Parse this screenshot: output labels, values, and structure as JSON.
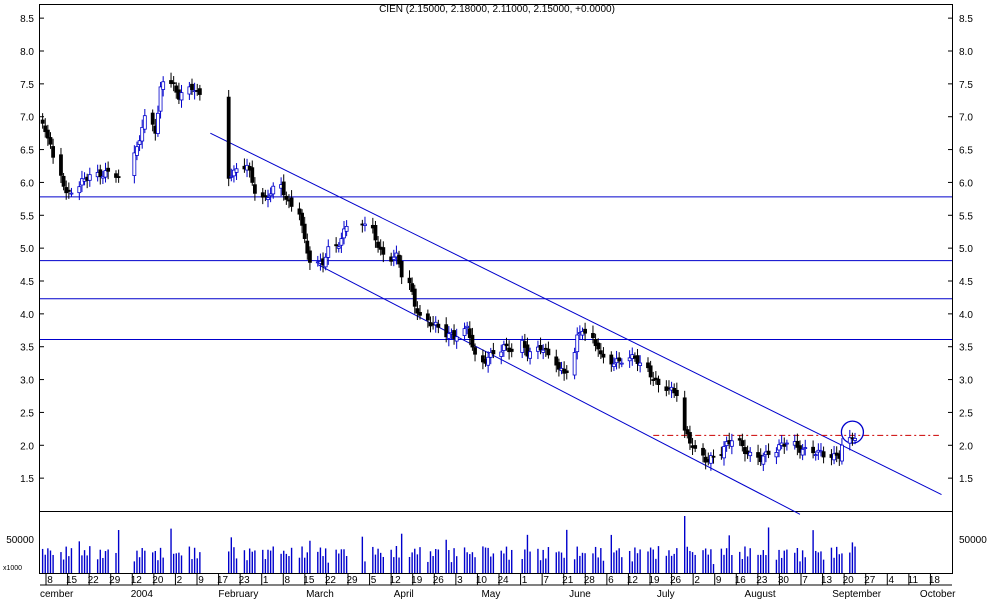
{
  "chart_data": {
    "type": "candlestick",
    "title": "CIEN (2.15000, 2.18000, 2.11000, 2.15000, +0.0000)",
    "ylim": [
      1.0,
      8.7
    ],
    "y_ticks": [
      "1.5",
      "2.0",
      "2.5",
      "3.0",
      "3.5",
      "4.0",
      "4.5",
      "5.0",
      "5.5",
      "6.0",
      "6.5",
      "7.0",
      "7.5",
      "8.0",
      "8.5"
    ],
    "volume_tick_label": "50000",
    "volume_unit_label": "x1000",
    "volume_max": 95000,
    "day_labels": [
      "8",
      "15",
      "22",
      "29",
      "12",
      "20",
      "2",
      "9",
      "17",
      "23",
      "1",
      "8",
      "15",
      "22",
      "29",
      "5",
      "12",
      "19",
      "26",
      "3",
      "10",
      "24",
      "1",
      "7",
      "21",
      "28",
      "6",
      "12",
      "19",
      "26",
      "2",
      "9",
      "16",
      "23",
      "30",
      "7",
      "13",
      "20",
      "27",
      "4",
      "11",
      "18"
    ],
    "month_labels": [
      "cember",
      "2004",
      "February",
      "March",
      "April",
      "May",
      "June",
      "July",
      "August",
      "September",
      "October"
    ],
    "horizontal_lines": [
      5.78,
      4.81,
      4.23,
      3.61
    ],
    "dashed_level": 2.15,
    "channel_upper": [
      {
        "x": "2004-02-03",
        "y": 6.75
      },
      {
        "x": "2004-11-08",
        "y": 1.25
      }
    ],
    "channel_lower": [
      {
        "x": "2004-03-15",
        "y": 4.75
      },
      {
        "x": "2004-09-15",
        "y": 0.95
      }
    ],
    "highlight_point": {
      "x": "2004-10-05",
      "y": 2.2
    },
    "colors": {
      "up": "#0000cc",
      "down": "#000000",
      "line": "#0000cc",
      "dashed": "#cc0000",
      "axis": "#000000"
    },
    "segments": [
      {
        "start": "2003-12-01",
        "end": "2003-12-30",
        "closes": [
          6.85,
          6.7,
          6.2,
          5.8,
          5.9,
          6.05,
          6.1,
          6.12,
          6.15,
          6.1
        ]
      },
      {
        "start": "2004-01-05",
        "end": "2004-01-30",
        "closes": [
          6.4,
          6.7,
          7.0,
          6.75,
          7.6,
          7.5,
          7.3,
          7.4,
          7.45,
          7.3
        ]
      },
      {
        "start": "2004-02-10",
        "end": "2004-03-26",
        "closes": [
          6.1,
          6.15,
          6.3,
          6.0,
          5.7,
          5.85,
          5.95,
          5.7,
          5.6,
          5.05,
          4.75,
          4.78,
          5.0,
          5.1,
          5.35
        ]
      },
      {
        "start": "2004-04-01",
        "end": "2004-04-30",
        "closes": [
          5.4,
          5.25,
          4.95,
          4.85,
          4.88,
          4.5,
          4.15,
          3.9,
          3.85,
          3.8
        ]
      },
      {
        "start": "2004-05-03",
        "end": "2004-05-28",
        "closes": [
          3.7,
          3.65,
          3.8,
          3.25,
          3.35,
          3.5,
          3.45
        ]
      },
      {
        "start": "2004-06-01",
        "end": "2004-06-30",
        "closes": [
          3.55,
          3.4,
          3.45,
          3.5,
          3.3,
          3.15,
          3.05,
          3.6,
          3.8,
          3.6,
          3.5
        ]
      },
      {
        "start": "2004-07-01",
        "end": "2004-07-30",
        "closes": [
          3.35,
          3.25,
          3.3,
          3.35,
          3.15,
          2.95,
          2.85,
          2.8
        ]
      },
      {
        "start": "2004-08-02",
        "end": "2004-08-31",
        "closes": [
          2.2,
          2.05,
          1.85,
          1.75,
          1.85,
          2.0,
          2.1,
          1.95,
          1.85,
          1.8
        ]
      },
      {
        "start": "2004-09-01",
        "end": "2004-09-30",
        "closes": [
          1.82,
          1.9,
          2.0,
          2.05,
          1.95,
          1.92,
          1.9,
          1.88,
          1.82,
          1.85
        ]
      },
      {
        "start": "2004-10-01",
        "end": "2004-10-06",
        "closes": [
          2.0,
          2.1,
          2.15
        ]
      }
    ]
  }
}
